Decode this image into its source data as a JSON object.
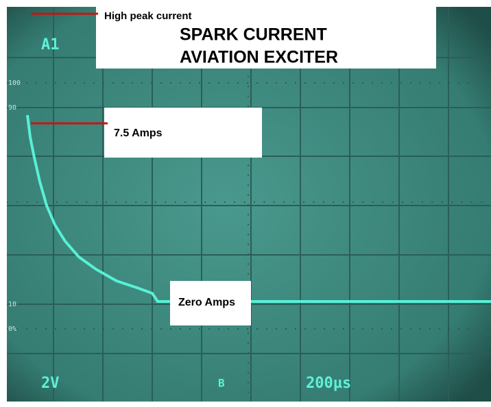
{
  "header": {
    "note": "High peak current",
    "title_line1": "SPARK CURRENT",
    "title_line2": "AVIATION EXCITER"
  },
  "annotations": {
    "peak": "7.5 Amps",
    "zero": "Zero Amps"
  },
  "scope": {
    "channel": "A1",
    "volts_per_div": "2V",
    "time_per_div": "200µs",
    "trigger": "B",
    "graticule_labels": [
      "100",
      "90",
      "10",
      "0%"
    ]
  }
}
